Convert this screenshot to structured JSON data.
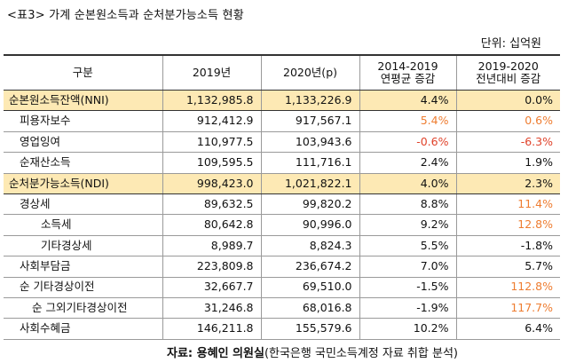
{
  "title": "<표3> 가계 순본원소득과 순처분가능소득 현황",
  "unit": "단위: 십억원",
  "table": {
    "headers": [
      "구분",
      "2019년",
      "2020년(p)",
      "2014-2019\n연평균 증감",
      "2019-2020\n전년대비 증감"
    ],
    "rows": [
      {
        "label": "순본원소득잔액(NNI)",
        "level": 0,
        "highlight": true,
        "v2019": "1,132,985.8",
        "v2020": "1,133,226.9",
        "avg": "4.4%",
        "yoy": "0.0%",
        "avg_color": "",
        "yoy_color": ""
      },
      {
        "label": "피용자보수",
        "level": 1,
        "highlight": false,
        "v2019": "912,412.9",
        "v2020": "917,567.1",
        "avg": "5.4%",
        "yoy": "0.6%",
        "avg_color": "orange",
        "yoy_color": "orange"
      },
      {
        "label": "영업잉여",
        "level": 1,
        "highlight": false,
        "v2019": "110,977.5",
        "v2020": "103,943.6",
        "avg": "-0.6%",
        "yoy": "-6.3%",
        "avg_color": "red",
        "yoy_color": "red"
      },
      {
        "label": "순재산소득",
        "level": 1,
        "highlight": false,
        "v2019": "109,595.5",
        "v2020": "111,716.1",
        "avg": "2.4%",
        "yoy": "1.9%",
        "avg_color": "",
        "yoy_color": ""
      },
      {
        "label": "순처분가능소득(NDI)",
        "level": 0,
        "highlight": true,
        "v2019": "998,423.0",
        "v2020": "1,021,822.1",
        "avg": "4.0%",
        "yoy": "2.3%",
        "avg_color": "",
        "yoy_color": ""
      },
      {
        "label": "경상세",
        "level": 1,
        "highlight": false,
        "v2019": "89,632.5",
        "v2020": "99,820.2",
        "avg": "8.8%",
        "yoy": "11.4%",
        "avg_color": "",
        "yoy_color": "orange"
      },
      {
        "label": "소득세",
        "level": 3,
        "highlight": false,
        "v2019": "80,642.8",
        "v2020": "90,996.0",
        "avg": "9.2%",
        "yoy": "12.8%",
        "avg_color": "",
        "yoy_color": "orange"
      },
      {
        "label": "기타경상세",
        "level": 3,
        "highlight": false,
        "v2019": "8,989.7",
        "v2020": "8,824.3",
        "avg": "5.5%",
        "yoy": "-1.8%",
        "avg_color": "",
        "yoy_color": ""
      },
      {
        "label": "사회부담금",
        "level": 1,
        "highlight": false,
        "v2019": "223,809.8",
        "v2020": "236,674.2",
        "avg": "7.0%",
        "yoy": "5.7%",
        "avg_color": "",
        "yoy_color": ""
      },
      {
        "label": "순 기타경상이전",
        "level": 1,
        "highlight": false,
        "v2019": "32,667.7",
        "v2020": "69,510.0",
        "avg": "-1.5%",
        "yoy": "112.8%",
        "avg_color": "",
        "yoy_color": "orange"
      },
      {
        "label": "순 그외기타경상이전",
        "level": 2,
        "highlight": false,
        "v2019": "31,246.8",
        "v2020": "68,016.8",
        "avg": "-1.9%",
        "yoy": "117.7%",
        "avg_color": "",
        "yoy_color": "orange"
      },
      {
        "label": "사회수혜금",
        "level": 1,
        "highlight": false,
        "v2019": "146,211.8",
        "v2020": "155,579.6",
        "avg": "10.2%",
        "yoy": "6.4%",
        "avg_color": "",
        "yoy_color": ""
      }
    ]
  },
  "source": {
    "prefix": "자료: 용혜인 의원실",
    "suffix": "(한국은행 국민소득계정 자료 취합 분석)"
  }
}
